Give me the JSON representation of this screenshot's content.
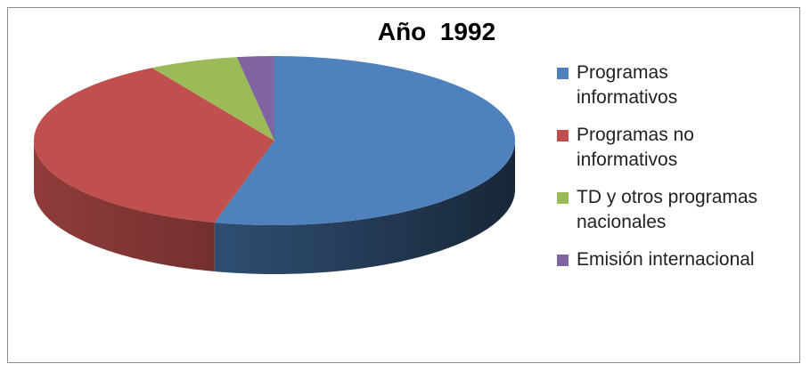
{
  "chart_data": {
    "type": "pie3d",
    "title": "Año  1992",
    "series": [
      {
        "name": "Programas informativos",
        "color": "#4f81bd",
        "values": [
          54
        ]
      },
      {
        "name": "Programas no informativos",
        "color": "#c0504d",
        "values": [
          37.5
        ]
      },
      {
        "name": "TD y otros programas nacionales",
        "color": "#9bbb59",
        "values": [
          6
        ]
      },
      {
        "name": "Emisión internacional",
        "color": "#8064a2",
        "values": [
          2.5
        ]
      }
    ],
    "legend": "right"
  }
}
